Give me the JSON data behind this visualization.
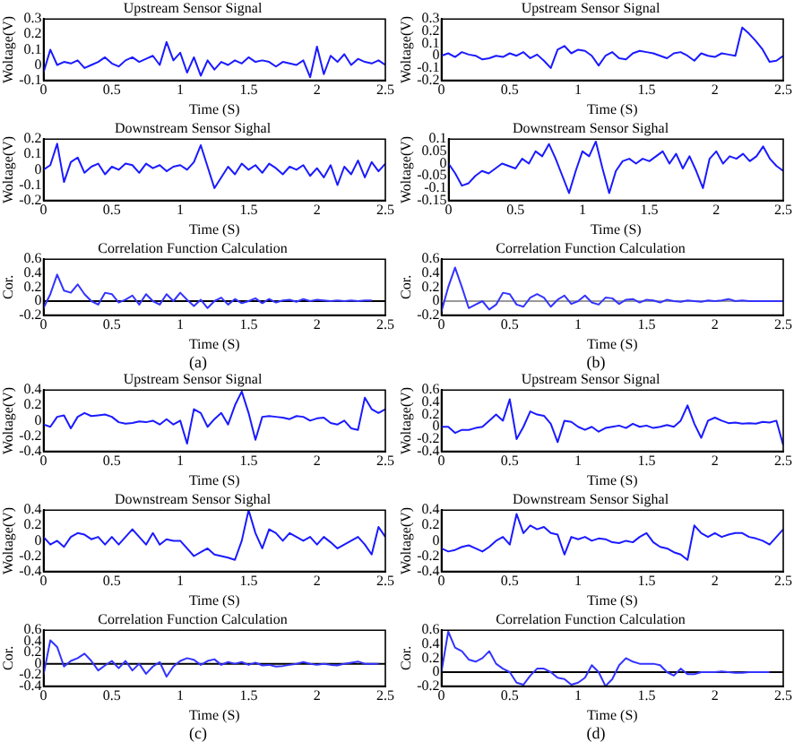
{
  "chart_data": [
    {
      "type": "line",
      "title": "Upstream Sensor Signal",
      "xlabel": "Time (S)",
      "ylabel": "Woltage(V)",
      "color": "#1a1aff",
      "xlim": [
        0,
        2.5
      ],
      "xticks": [
        0,
        0.5,
        1,
        1.5,
        2,
        2.5
      ],
      "ylim": [
        -0.1,
        0.3
      ],
      "yticks": [
        -0.1,
        0,
        0.1,
        0.2,
        0.3
      ],
      "grid": false,
      "legend": false,
      "x": [
        0,
        0.05,
        0.1,
        0.15,
        0.2,
        0.25,
        0.3,
        0.35,
        0.4,
        0.45,
        0.5,
        0.55,
        0.6,
        0.65,
        0.7,
        0.75,
        0.8,
        0.85,
        0.9,
        0.95,
        1,
        1.05,
        1.1,
        1.15,
        1.2,
        1.25,
        1.3,
        1.35,
        1.4,
        1.45,
        1.5,
        1.55,
        1.6,
        1.65,
        1.7,
        1.75,
        1.8,
        1.85,
        1.9,
        1.95,
        2,
        2.05,
        2.1,
        2.15,
        2.2,
        2.25,
        2.3,
        2.35,
        2.4,
        2.45,
        2.5
      ],
      "values": [
        -0.05,
        0.1,
        0.0,
        0.02,
        0.01,
        0.03,
        -0.02,
        0.0,
        0.02,
        0.05,
        0.01,
        -0.01,
        0.03,
        0.05,
        0.02,
        0.04,
        0.06,
        0.0,
        0.15,
        0.03,
        0.08,
        -0.05,
        0.05,
        -0.07,
        0.03,
        -0.03,
        0.02,
        0.0,
        0.03,
        0.01,
        0.05,
        0.02,
        0.03,
        0.02,
        -0.01,
        0.02,
        0.01,
        0.0,
        0.03,
        -0.08,
        0.12,
        -0.06,
        0.06,
        0.02,
        0.07,
        0.0,
        0.04,
        0.02,
        0.01,
        0.03,
        0.0
      ]
    },
    {
      "type": "line",
      "title": "Downstream Sensor Sighal",
      "xlabel": "Time (S)",
      "ylabel": "Woltage(V)",
      "color": "#1a1aff",
      "xlim": [
        0,
        2.5
      ],
      "xticks": [
        0,
        0.5,
        1,
        1.5,
        2,
        2.5
      ],
      "ylim": [
        -0.2,
        0.2
      ],
      "yticks": [
        -0.2,
        -0.1,
        0,
        0.1,
        0.2
      ],
      "grid": false,
      "legend": false,
      "x": [
        0,
        0.05,
        0.1,
        0.15,
        0.2,
        0.25,
        0.3,
        0.35,
        0.4,
        0.45,
        0.5,
        0.55,
        0.6,
        0.65,
        0.7,
        0.75,
        0.8,
        0.85,
        0.9,
        0.95,
        1,
        1.05,
        1.1,
        1.15,
        1.2,
        1.25,
        1.3,
        1.35,
        1.4,
        1.45,
        1.5,
        1.55,
        1.6,
        1.65,
        1.7,
        1.75,
        1.8,
        1.85,
        1.9,
        1.95,
        2,
        2.05,
        2.1,
        2.15,
        2.2,
        2.25,
        2.3,
        2.35,
        2.4,
        2.45,
        2.5
      ],
      "values": [
        0.0,
        0.03,
        0.17,
        -0.08,
        0.05,
        0.08,
        -0.02,
        0.02,
        0.04,
        -0.03,
        0.02,
        0.0,
        0.04,
        0.03,
        -0.02,
        0.04,
        0.01,
        0.03,
        -0.01,
        0.02,
        0.03,
        0.0,
        0.05,
        0.16,
        0.02,
        -0.12,
        -0.05,
        0.02,
        -0.03,
        0.04,
        0.0,
        0.03,
        -0.02,
        0.04,
        0.01,
        -0.03,
        0.02,
        0.0,
        0.03,
        -0.04,
        0.01,
        -0.05,
        0.03,
        -0.1,
        0.02,
        -0.03,
        0.06,
        -0.05,
        0.05,
        -0.01,
        0.04
      ]
    },
    {
      "type": "line",
      "title": "Correlation Function Calculation",
      "xlabel": "Time (S)",
      "ylabel": "Cor.",
      "color": "#3333ff",
      "xlim": [
        0,
        2.5
      ],
      "xticks": [
        0,
        0.5,
        1,
        1.5,
        2,
        2.5
      ],
      "ylim": [
        -0.2,
        0.6
      ],
      "yticks": [
        -0.2,
        0,
        0.2,
        0.4,
        0.6
      ],
      "grid": false,
      "legend": false,
      "ref_lines": [
        {
          "axis": "y",
          "value": 0,
          "color": "#000000"
        }
      ],
      "annotations": [
        "(a)"
      ],
      "x": [
        0,
        0.05,
        0.1,
        0.15,
        0.2,
        0.25,
        0.3,
        0.35,
        0.4,
        0.45,
        0.5,
        0.55,
        0.6,
        0.65,
        0.7,
        0.75,
        0.8,
        0.85,
        0.9,
        0.95,
        1,
        1.05,
        1.1,
        1.15,
        1.2,
        1.25,
        1.3,
        1.35,
        1.4,
        1.45,
        1.5,
        1.55,
        1.6,
        1.65,
        1.7,
        1.75,
        1.8,
        1.85,
        1.9,
        1.95,
        2,
        2.05,
        2.1,
        2.15,
        2.2,
        2.25,
        2.3,
        2.35,
        2.4
      ],
      "values": [
        -0.1,
        0.1,
        0.38,
        0.15,
        0.12,
        0.24,
        0.1,
        0.0,
        -0.05,
        0.12,
        0.1,
        -0.02,
        0.02,
        0.08,
        -0.05,
        0.1,
        0.0,
        -0.05,
        0.1,
        0.0,
        0.12,
        0.02,
        -0.07,
        0.02,
        -0.1,
        0.0,
        0.05,
        -0.05,
        0.03,
        -0.03,
        0.0,
        0.04,
        -0.03,
        0.03,
        -0.02,
        0.01,
        0.02,
        -0.01,
        0.03,
        0.0,
        0.02,
        0.01,
        0.0,
        0.01,
        0.0,
        0.01,
        0.0,
        0.01,
        0.01
      ]
    },
    {
      "type": "line",
      "title": "Upstream Sensor Signal",
      "xlabel": "Time (S)",
      "ylabel": "Woltage(V)",
      "color": "#1a1aff",
      "xlim": [
        0,
        2.5
      ],
      "xticks": [
        0,
        0.5,
        1,
        1.5,
        2,
        2.5
      ],
      "ylim": [
        -0.2,
        0.3
      ],
      "yticks": [
        -0.2,
        -0.1,
        0,
        0.1,
        0.2,
        0.3
      ],
      "grid": false,
      "legend": false,
      "x": [
        0,
        0.05,
        0.1,
        0.15,
        0.2,
        0.25,
        0.3,
        0.35,
        0.4,
        0.45,
        0.5,
        0.55,
        0.6,
        0.65,
        0.7,
        0.75,
        0.8,
        0.85,
        0.9,
        0.95,
        1,
        1.05,
        1.1,
        1.15,
        1.2,
        1.25,
        1.3,
        1.35,
        1.4,
        1.45,
        1.5,
        1.55,
        1.6,
        1.65,
        1.7,
        1.75,
        1.8,
        1.85,
        1.9,
        1.95,
        2,
        2.05,
        2.1,
        2.15,
        2.2,
        2.25,
        2.3,
        2.35,
        2.4,
        2.45,
        2.5
      ],
      "values": [
        0.0,
        0.02,
        -0.01,
        0.03,
        0.01,
        0.0,
        -0.03,
        -0.02,
        0.0,
        -0.01,
        0.02,
        0.0,
        0.03,
        -0.02,
        0.01,
        -0.04,
        -0.1,
        0.05,
        0.08,
        0.02,
        0.05,
        0.04,
        0.0,
        -0.08,
        0.0,
        0.03,
        -0.02,
        -0.03,
        0.02,
        0.04,
        0.03,
        0.02,
        0.0,
        -0.02,
        0.02,
        0.03,
        0.0,
        -0.04,
        0.02,
        0.0,
        -0.01,
        0.02,
        0.01,
        0.0,
        0.23,
        0.18,
        0.12,
        0.05,
        -0.05,
        -0.04,
        0.0
      ]
    },
    {
      "type": "line",
      "title": "Downstream Sensor Sighal",
      "xlabel": "Time (S)",
      "ylabel": "Woltage(V)",
      "color": "#1a1aff",
      "xlim": [
        0,
        2.5
      ],
      "xticks": [
        0,
        0.5,
        1,
        1.5,
        2,
        2.5
      ],
      "ylim": [
        -0.15,
        0.1
      ],
      "yticks": [
        -0.15,
        -0.1,
        -0.05,
        0,
        0.05,
        0.1
      ],
      "grid": false,
      "legend": false,
      "x": [
        0,
        0.05,
        0.1,
        0.15,
        0.2,
        0.25,
        0.3,
        0.35,
        0.4,
        0.45,
        0.5,
        0.55,
        0.6,
        0.65,
        0.7,
        0.75,
        0.8,
        0.85,
        0.9,
        0.95,
        1,
        1.05,
        1.1,
        1.15,
        1.2,
        1.25,
        1.3,
        1.35,
        1.4,
        1.45,
        1.5,
        1.55,
        1.6,
        1.65,
        1.7,
        1.75,
        1.8,
        1.85,
        1.9,
        1.95,
        2,
        2.05,
        2.1,
        2.15,
        2.2,
        2.25,
        2.3,
        2.35,
        2.4,
        2.45,
        2.5
      ],
      "values": [
        0.0,
        -0.04,
        -0.09,
        -0.08,
        -0.05,
        -0.03,
        -0.04,
        -0.02,
        0.0,
        -0.01,
        -0.02,
        0.02,
        0.0,
        0.05,
        0.03,
        0.08,
        0.02,
        -0.05,
        -0.12,
        -0.03,
        0.05,
        0.03,
        0.09,
        -0.02,
        -0.12,
        -0.03,
        0.01,
        0.02,
        0.0,
        0.02,
        0.01,
        0.03,
        0.05,
        0.0,
        0.04,
        -0.02,
        0.03,
        -0.03,
        -0.1,
        0.02,
        0.05,
        0.0,
        0.03,
        0.02,
        0.04,
        0.01,
        0.03,
        0.07,
        0.02,
        -0.01,
        -0.03
      ]
    },
    {
      "type": "line",
      "title": "Correlation Function Calculation",
      "xlabel": "Time (S)",
      "ylabel": "Cor.",
      "color": "#3333ff",
      "xlim": [
        0,
        2.5
      ],
      "xticks": [
        0,
        0.5,
        1,
        1.5,
        2,
        2.5
      ],
      "ylim": [
        -0.2,
        0.6
      ],
      "yticks": [
        -0.2,
        0,
        0.2,
        0.4,
        0.6
      ],
      "grid": false,
      "legend": false,
      "ref_lines": [
        {
          "axis": "y",
          "value": 0,
          "color": "#999999"
        }
      ],
      "annotations": [
        "(b)"
      ],
      "x": [
        0,
        0.05,
        0.1,
        0.15,
        0.2,
        0.25,
        0.3,
        0.35,
        0.4,
        0.45,
        0.5,
        0.55,
        0.6,
        0.65,
        0.7,
        0.75,
        0.8,
        0.85,
        0.9,
        0.95,
        1,
        1.05,
        1.1,
        1.15,
        1.2,
        1.25,
        1.3,
        1.35,
        1.4,
        1.45,
        1.5,
        1.55,
        1.6,
        1.65,
        1.7,
        1.75,
        1.8,
        1.85,
        1.9,
        1.95,
        2,
        2.05,
        2.1,
        2.15,
        2.2,
        2.25,
        2.3,
        2.35,
        2.4,
        2.45,
        2.5
      ],
      "values": [
        -0.15,
        0.2,
        0.48,
        0.2,
        -0.1,
        -0.05,
        0.0,
        -0.12,
        -0.05,
        0.12,
        0.1,
        -0.05,
        -0.08,
        0.05,
        0.1,
        0.05,
        -0.08,
        0.02,
        0.08,
        -0.04,
        0.0,
        0.08,
        -0.02,
        -0.05,
        0.05,
        0.04,
        -0.04,
        0.02,
        0.03,
        -0.02,
        0.02,
        0.01,
        -0.02,
        0.02,
        0.0,
        -0.01,
        0.01,
        0.0,
        -0.01,
        0.01,
        0.0,
        0.01,
        0.03,
        0.0,
        0.01,
        0.0,
        0.0,
        0.0,
        0.0,
        0.0,
        0.0
      ]
    },
    {
      "type": "line",
      "title": "Upstream Sensor Signal",
      "xlabel": "Time (S)",
      "ylabel": "Woltage(V)",
      "color": "#1a1aff",
      "xlim": [
        0,
        2.5
      ],
      "xticks": [
        0,
        0.5,
        1,
        1.5,
        2,
        2.5
      ],
      "ylim": [
        -0.4,
        0.4
      ],
      "yticks": [
        -0.4,
        -0.2,
        0,
        0.2,
        0.4
      ],
      "grid": false,
      "legend": false,
      "x": [
        0,
        0.05,
        0.1,
        0.15,
        0.2,
        0.25,
        0.3,
        0.35,
        0.4,
        0.45,
        0.5,
        0.55,
        0.6,
        0.65,
        0.7,
        0.75,
        0.8,
        0.85,
        0.9,
        0.95,
        1,
        1.05,
        1.1,
        1.15,
        1.2,
        1.25,
        1.3,
        1.35,
        1.4,
        1.45,
        1.5,
        1.55,
        1.6,
        1.65,
        1.7,
        1.75,
        1.8,
        1.85,
        1.9,
        1.95,
        2,
        2.05,
        2.1,
        2.15,
        2.2,
        2.25,
        2.3,
        2.35,
        2.4,
        2.45,
        2.5
      ],
      "values": [
        -0.05,
        -0.08,
        0.05,
        0.07,
        -0.1,
        0.05,
        0.1,
        0.06,
        0.07,
        0.08,
        0.05,
        -0.02,
        -0.04,
        -0.03,
        -0.01,
        -0.02,
        0.0,
        -0.05,
        0.02,
        -0.05,
        0.0,
        -0.3,
        0.15,
        0.1,
        -0.08,
        0.02,
        0.1,
        -0.05,
        0.2,
        0.38,
        0.1,
        -0.25,
        0.05,
        0.06,
        0.05,
        0.04,
        0.02,
        0.06,
        0.05,
        0.0,
        0.03,
        0.04,
        -0.03,
        -0.05,
        0.0,
        -0.1,
        -0.12,
        0.3,
        0.15,
        0.1,
        0.15
      ]
    },
    {
      "type": "line",
      "title": "Downstream Sensor Sighal",
      "xlabel": "Time (S)",
      "ylabel": "Woltage(V)",
      "color": "#1a1aff",
      "xlim": [
        0,
        2.5
      ],
      "xticks": [
        0,
        0.5,
        1,
        1.5,
        2,
        2.5
      ],
      "ylim": [
        -0.4,
        0.4
      ],
      "yticks": [
        -0.4,
        -0.2,
        0,
        0.2,
        0.4
      ],
      "grid": false,
      "legend": false,
      "x": [
        0,
        0.05,
        0.1,
        0.15,
        0.2,
        0.25,
        0.3,
        0.35,
        0.4,
        0.45,
        0.5,
        0.55,
        0.6,
        0.65,
        0.7,
        0.75,
        0.8,
        0.85,
        0.9,
        0.95,
        1,
        1.05,
        1.1,
        1.15,
        1.2,
        1.25,
        1.3,
        1.35,
        1.4,
        1.45,
        1.5,
        1.55,
        1.6,
        1.65,
        1.7,
        1.75,
        1.8,
        1.85,
        1.9,
        1.95,
        2,
        2.05,
        2.1,
        2.15,
        2.2,
        2.25,
        2.3,
        2.35,
        2.4,
        2.45,
        2.5
      ],
      "values": [
        0.05,
        -0.05,
        0.0,
        -0.08,
        0.05,
        0.1,
        0.08,
        0.02,
        0.05,
        -0.05,
        0.05,
        -0.05,
        0.05,
        0.15,
        0.05,
        -0.05,
        0.1,
        -0.05,
        0.02,
        0.0,
        0.0,
        -0.1,
        -0.2,
        -0.15,
        -0.1,
        -0.18,
        -0.2,
        -0.22,
        -0.25,
        0.0,
        0.4,
        0.1,
        -0.1,
        0.15,
        0.1,
        0.0,
        0.1,
        0.05,
        0.0,
        0.05,
        -0.05,
        0.05,
        -0.02,
        -0.1,
        -0.05,
        0.0,
        0.05,
        -0.05,
        -0.18,
        0.18,
        0.05
      ]
    },
    {
      "type": "line",
      "title": "Correlation Function Calculation",
      "xlabel": "Time (S)",
      "ylabel": "Cor.",
      "color": "#3333ff",
      "xlim": [
        0,
        2.5
      ],
      "xticks": [
        0,
        0.5,
        1,
        1.5,
        2,
        2.5
      ],
      "ylim": [
        -0.4,
        0.6
      ],
      "yticks": [
        -0.4,
        -0.2,
        0,
        0.2,
        0.4,
        0.6
      ],
      "grid": false,
      "legend": false,
      "ref_lines": [
        {
          "axis": "y",
          "value": 0,
          "color": "#000000"
        }
      ],
      "annotations": [
        "(c)"
      ],
      "x": [
        0,
        0.05,
        0.1,
        0.15,
        0.2,
        0.25,
        0.3,
        0.35,
        0.4,
        0.45,
        0.5,
        0.55,
        0.6,
        0.65,
        0.7,
        0.75,
        0.8,
        0.85,
        0.9,
        0.95,
        1,
        1.05,
        1.1,
        1.15,
        1.2,
        1.25,
        1.3,
        1.35,
        1.4,
        1.45,
        1.5,
        1.55,
        1.6,
        1.65,
        1.7,
        1.75,
        1.8,
        1.85,
        1.9,
        1.95,
        2,
        2.05,
        2.1,
        2.15,
        2.2,
        2.25,
        2.3,
        2.35,
        2.4,
        2.45
      ],
      "values": [
        -0.2,
        0.42,
        0.3,
        -0.05,
        0.05,
        0.1,
        0.18,
        0.05,
        -0.12,
        -0.03,
        0.05,
        -0.08,
        0.05,
        -0.12,
        0.0,
        -0.18,
        -0.05,
        0.03,
        -0.23,
        -0.05,
        0.05,
        0.1,
        0.07,
        -0.02,
        0.05,
        0.08,
        -0.02,
        0.03,
        0.0,
        0.03,
        -0.02,
        0.02,
        -0.03,
        -0.02,
        -0.05,
        -0.04,
        -0.02,
        0.0,
        0.03,
        0.0,
        -0.02,
        0.0,
        -0.02,
        -0.03,
        0.0,
        0.02,
        0.04,
        0.0,
        0.0,
        0.0
      ]
    },
    {
      "type": "line",
      "title": "Upstream Sensor Signal",
      "xlabel": "Time (S)",
      "ylabel": "Woltage(V)",
      "color": "#1a1aff",
      "xlim": [
        0,
        2.5
      ],
      "xticks": [
        0,
        0.5,
        1,
        1.5,
        2,
        2.5
      ],
      "ylim": [
        -0.4,
        0.6
      ],
      "yticks": [
        -0.4,
        -0.2,
        0,
        0.2,
        0.4,
        0.6
      ],
      "grid": false,
      "legend": false,
      "x": [
        0,
        0.05,
        0.1,
        0.15,
        0.2,
        0.25,
        0.3,
        0.35,
        0.4,
        0.45,
        0.5,
        0.55,
        0.6,
        0.65,
        0.7,
        0.75,
        0.8,
        0.85,
        0.9,
        0.95,
        1,
        1.05,
        1.1,
        1.15,
        1.2,
        1.25,
        1.3,
        1.35,
        1.4,
        1.45,
        1.5,
        1.55,
        1.6,
        1.65,
        1.7,
        1.75,
        1.8,
        1.85,
        1.9,
        1.95,
        2,
        2.05,
        2.1,
        2.15,
        2.2,
        2.25,
        2.3,
        2.35,
        2.4,
        2.45,
        2.5
      ],
      "values": [
        0.0,
        0.0,
        -0.1,
        -0.05,
        -0.05,
        -0.02,
        0.0,
        0.1,
        0.2,
        0.1,
        0.45,
        -0.2,
        0.0,
        0.25,
        0.2,
        0.18,
        0.05,
        -0.25,
        0.1,
        0.08,
        0.0,
        -0.05,
        0.0,
        -0.08,
        -0.02,
        0.0,
        0.02,
        -0.02,
        0.05,
        0.0,
        0.02,
        -0.02,
        0.0,
        0.03,
        0.0,
        0.1,
        0.35,
        0.05,
        -0.18,
        0.1,
        0.15,
        0.1,
        0.06,
        0.07,
        0.05,
        0.06,
        0.05,
        0.08,
        0.07,
        0.1,
        -0.3
      ]
    },
    {
      "type": "line",
      "title": "Downstream Sensor Sighal",
      "xlabel": "Time (S)",
      "ylabel": "Woltage(V)",
      "color": "#1a1aff",
      "xlim": [
        0,
        2.5
      ],
      "xticks": [
        0,
        0.5,
        1,
        1.5,
        2,
        2.5
      ],
      "ylim": [
        -0.4,
        0.4
      ],
      "yticks": [
        -0.4,
        -0.2,
        0,
        0.2,
        0.4
      ],
      "grid": false,
      "legend": false,
      "x": [
        0,
        0.05,
        0.1,
        0.15,
        0.2,
        0.25,
        0.3,
        0.35,
        0.4,
        0.45,
        0.5,
        0.55,
        0.6,
        0.65,
        0.7,
        0.75,
        0.8,
        0.85,
        0.9,
        0.95,
        1,
        1.05,
        1.1,
        1.15,
        1.2,
        1.25,
        1.3,
        1.35,
        1.4,
        1.45,
        1.5,
        1.55,
        1.6,
        1.65,
        1.7,
        1.75,
        1.8,
        1.85,
        1.9,
        1.95,
        2,
        2.05,
        2.1,
        2.15,
        2.2,
        2.25,
        2.3,
        2.35,
        2.4,
        2.45,
        2.5
      ],
      "values": [
        -0.1,
        -0.14,
        -0.12,
        -0.08,
        -0.06,
        -0.1,
        -0.14,
        -0.08,
        0.0,
        0.05,
        -0.05,
        0.35,
        0.1,
        0.2,
        0.15,
        0.18,
        0.1,
        0.08,
        -0.18,
        0.05,
        0.02,
        0.05,
        0.0,
        0.03,
        0.02,
        -0.02,
        -0.03,
        0.0,
        -0.02,
        0.05,
        0.1,
        -0.02,
        -0.08,
        -0.1,
        -0.15,
        -0.18,
        -0.25,
        0.2,
        0.1,
        0.05,
        0.1,
        0.05,
        0.08,
        0.1,
        0.1,
        0.05,
        0.03,
        0.0,
        -0.05,
        0.05,
        0.15
      ]
    },
    {
      "type": "line",
      "title": "Correlation Function Calculation",
      "xlabel": "Time (S)",
      "ylabel": "Cor.",
      "color": "#3333ff",
      "xlim": [
        0,
        2.5
      ],
      "xticks": [
        0,
        0.5,
        1,
        1.5,
        2,
        2.5
      ],
      "ylim": [
        -0.2,
        0.6
      ],
      "yticks": [
        -0.2,
        0,
        0.2,
        0.4,
        0.6
      ],
      "grid": false,
      "legend": false,
      "ref_lines": [
        {
          "axis": "y",
          "value": 0,
          "color": "#000000"
        }
      ],
      "annotations": [
        "(d)"
      ],
      "x": [
        0,
        0.05,
        0.1,
        0.15,
        0.2,
        0.25,
        0.3,
        0.35,
        0.4,
        0.45,
        0.5,
        0.55,
        0.6,
        0.65,
        0.7,
        0.75,
        0.8,
        0.85,
        0.9,
        0.95,
        1,
        1.05,
        1.1,
        1.15,
        1.2,
        1.25,
        1.3,
        1.35,
        1.4,
        1.45,
        1.5,
        1.55,
        1.6,
        1.65,
        1.7,
        1.75,
        1.8,
        1.85,
        1.9,
        1.95,
        2,
        2.05,
        2.1,
        2.15,
        2.2,
        2.25,
        2.3,
        2.35,
        2.4
      ],
      "values": [
        0.0,
        0.58,
        0.35,
        0.3,
        0.18,
        0.15,
        0.2,
        0.3,
        0.12,
        0.05,
        0.0,
        -0.15,
        -0.18,
        -0.05,
        0.05,
        0.05,
        0.0,
        -0.08,
        -0.1,
        -0.18,
        -0.15,
        -0.08,
        0.1,
        0.0,
        -0.2,
        -0.1,
        0.1,
        0.2,
        0.15,
        0.12,
        0.12,
        0.12,
        0.1,
        0.0,
        -0.05,
        0.05,
        -0.03,
        -0.03,
        0.0,
        0.0,
        0.0,
        0.01,
        0.0,
        -0.01,
        -0.01,
        0.0,
        0.0,
        0.0,
        0.0
      ]
    }
  ]
}
